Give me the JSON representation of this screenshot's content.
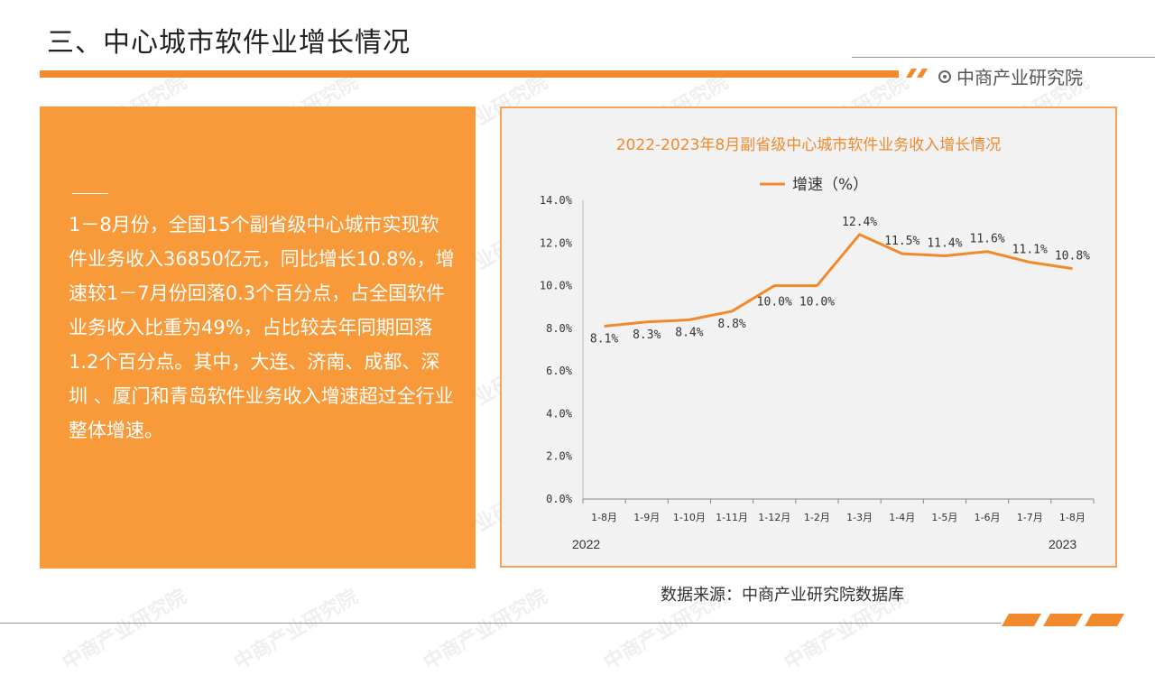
{
  "header": {
    "title": "三、中心城市软件业增长情况",
    "brand": "中商产业研究院"
  },
  "summary": {
    "text": "1－8月份，全国15个副省级中心城市实现软件业务收入36850亿元，同比增长10.8%，增速较1－7月份回落0.3个百分点，占全国软件业务收入比重为49%，占比较去年同期回落1.2个百分点。其中，大连、济南、成都、深圳 、厦门和青岛软件业务收入增速超过全行业整体增速。"
  },
  "watermark": {
    "text": "中商产业研究院"
  },
  "colors": {
    "accent": "#f08a2c",
    "panel": "#f99a3a",
    "line": "#f08a2c"
  },
  "chart_data": {
    "type": "line",
    "title": "2022-2023年8月副省级中心城市软件业务收入增长情况",
    "categories": [
      "1-8月",
      "1-9月",
      "1-10月",
      "1-11月",
      "1-12月",
      "1-2月",
      "1-3月",
      "1-4月",
      "1-5月",
      "1-6月",
      "1-7月",
      "1-8月"
    ],
    "series": [
      {
        "name": "增速（%）",
        "values": [
          8.1,
          8.3,
          8.4,
          8.8,
          10.0,
          10.0,
          12.4,
          11.5,
          11.4,
          11.6,
          11.1,
          10.8
        ]
      }
    ],
    "data_labels": [
      "8.1%",
      "8.3%",
      "8.4%",
      "8.8%",
      "10.0%",
      "10.0%",
      "12.4%",
      "11.5%",
      "11.4%",
      "11.6%",
      "11.1%",
      "10.8%"
    ],
    "y_ticks": [
      "0.0%",
      "2.0%",
      "4.0%",
      "6.0%",
      "8.0%",
      "10.0%",
      "12.0%",
      "14.0%"
    ],
    "ylim": [
      0,
      14
    ],
    "year_labels": {
      "left": "2022",
      "right": "2023"
    },
    "legend_position": "top-center",
    "grid": false
  },
  "footer": {
    "source": "数据来源：中商产业研究院数据库"
  }
}
